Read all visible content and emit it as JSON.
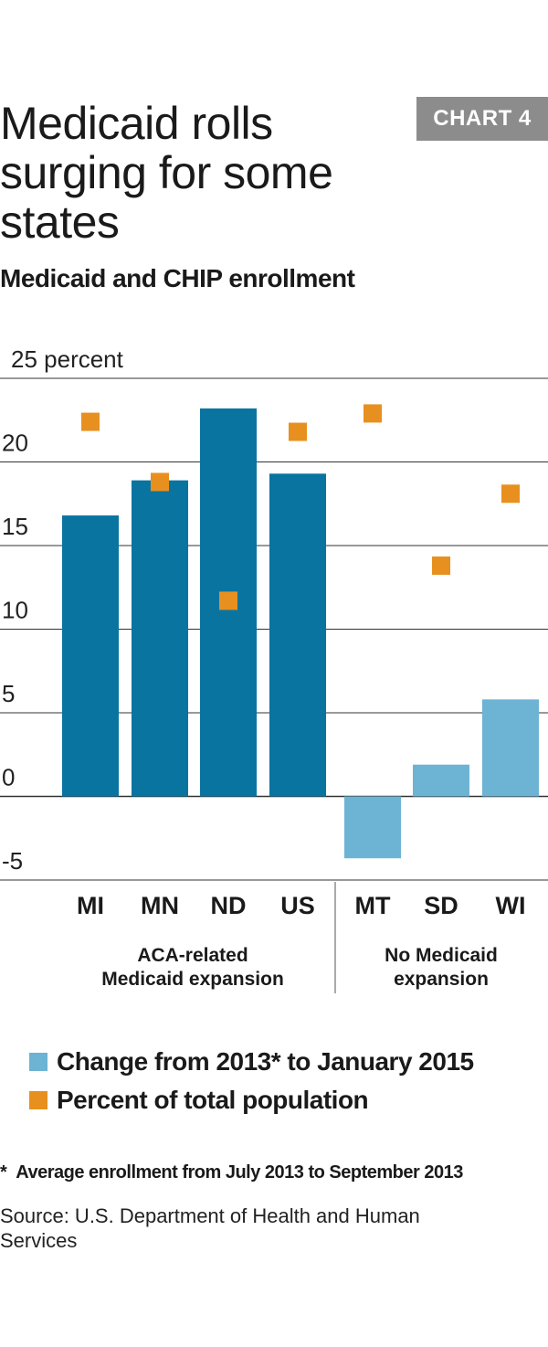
{
  "badge": "CHART 4",
  "title": "Medicaid rolls surging for some states",
  "subtitle": "Medicaid and CHIP enrollment",
  "colors": {
    "expansion_bar": "#0a74a0",
    "no_expansion_bar": "#6cb3d4",
    "population_marker": "#e8901f",
    "legend_change_swatch": "#6cb3d4",
    "gridline": "#333333"
  },
  "chart_data": {
    "type": "bar",
    "ylabel": "25 percent",
    "ylim": [
      -5,
      25
    ],
    "y_ticks": [
      {
        "value": 25,
        "label": "25 percent"
      },
      {
        "value": 20,
        "label": "20"
      },
      {
        "value": 15,
        "label": "15"
      },
      {
        "value": 10,
        "label": "10"
      },
      {
        "value": 5,
        "label": "5"
      },
      {
        "value": 0,
        "label": "0"
      },
      {
        "value": -5,
        "label": "-5"
      }
    ],
    "categories": [
      "MI",
      "MN",
      "ND",
      "US",
      "MT",
      "SD",
      "WI"
    ],
    "groups": [
      {
        "label": "ACA-related Medicaid expansion",
        "label_lines": [
          "ACA-related",
          "Medicaid expansion"
        ],
        "categories": [
          "MI",
          "MN",
          "ND",
          "US"
        ]
      },
      {
        "label": "No Medicaid expansion",
        "label_lines": [
          "No Medicaid",
          "expansion"
        ],
        "categories": [
          "MT",
          "SD",
          "WI"
        ]
      }
    ],
    "series": [
      {
        "name": "Change from 2013* to January 2015",
        "kind": "bar",
        "values": [
          16.8,
          18.9,
          23.2,
          19.3,
          -3.7,
          1.9,
          5.8
        ]
      },
      {
        "name": "Percent of total population",
        "kind": "marker",
        "values": [
          22.4,
          18.8,
          11.7,
          21.8,
          22.9,
          13.8,
          18.1
        ]
      }
    ],
    "legend_position": "bottom",
    "grid": true
  },
  "legend": [
    {
      "label": "Change from 2013* to January 2015",
      "color": "#6cb3d4"
    },
    {
      "label": "Percent of total population",
      "color": "#e8901f"
    }
  ],
  "footnote": {
    "marker": "*",
    "text": "Average enrollment from July 2013 to September 2013"
  },
  "source": "Source: U.S. Department of Health and Human Services"
}
